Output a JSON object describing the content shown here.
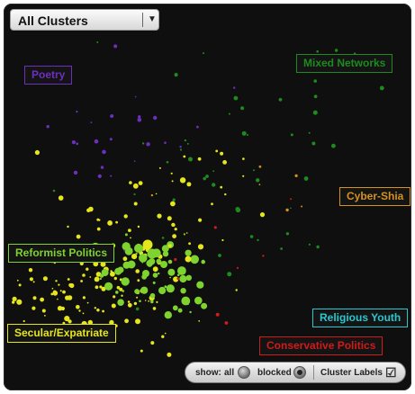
{
  "dropdown": {
    "selected": "All Clusters",
    "chevron_icon": "chevron-down-icon"
  },
  "clusters": [
    {
      "id": "poetry",
      "label": "Poetry",
      "color": "#6d2fc0"
    },
    {
      "id": "mixed-networks",
      "label": "Mixed Networks",
      "color": "#1f8a1f"
    },
    {
      "id": "cyber-shia",
      "label": "Cyber-Shia",
      "color": "#d4921e"
    },
    {
      "id": "reformist-politics",
      "label": "Reformist Politics",
      "color": "#7fd32e"
    },
    {
      "id": "secular-expatriate",
      "label": "Secular/Expatriate",
      "color": "#e6e61c"
    },
    {
      "id": "religious-youth",
      "label": "Religious Youth",
      "color": "#26c9cf"
    },
    {
      "id": "conservative-politics",
      "label": "Conservative Politics",
      "color": "#d11a1a"
    }
  ],
  "controls": {
    "show_label": "show:",
    "all_label": "all",
    "blocked_label": "blocked",
    "selected_filter": "blocked",
    "cluster_labels_label": "Cluster Labels",
    "cluster_labels_checked": true,
    "checkbox_icon": "checkbox-checked-icon"
  }
}
